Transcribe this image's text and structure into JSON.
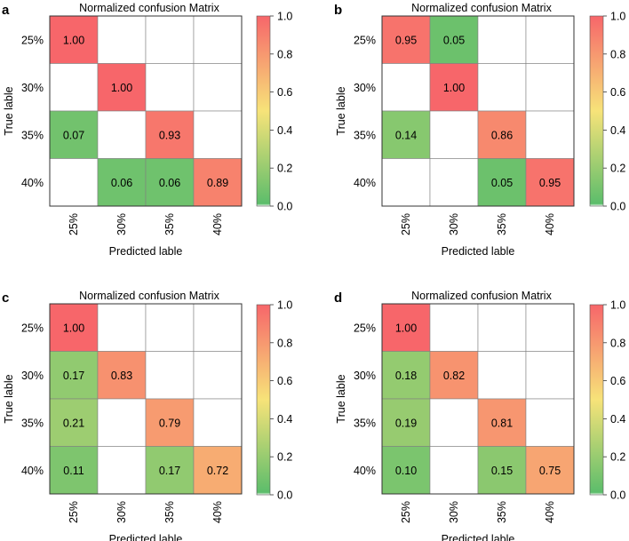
{
  "colors": {
    "scale_low": "#5cbd6b",
    "scale_mid": "#f7e379",
    "scale_high": "#f7666a",
    "grid": "#808080",
    "text": "#000000"
  },
  "chart_data": [
    {
      "type": "heatmap",
      "panel_label": "a",
      "title": "Normalized confusion Matrix",
      "xlabel": "Predicted lable",
      "ylabel": "True lable",
      "row_labels": [
        "25%",
        "30%",
        "35%",
        "40%"
      ],
      "col_labels": [
        "25%",
        "30%",
        "35%",
        "40%"
      ],
      "values": [
        [
          1.0,
          null,
          null,
          null
        ],
        [
          null,
          1.0,
          null,
          null
        ],
        [
          0.07,
          null,
          0.93,
          null
        ],
        [
          null,
          0.06,
          0.06,
          0.89
        ]
      ],
      "cell_labels": [
        [
          "1.00",
          "",
          "",
          ""
        ],
        [
          "",
          "1.00",
          "",
          ""
        ],
        [
          "0.07",
          "",
          "0.93",
          ""
        ],
        [
          "",
          "0.06",
          "0.06",
          "0.89"
        ]
      ],
      "colorbar": {
        "range": [
          0.0,
          1.0
        ],
        "ticks": [
          "0.0",
          "0.2",
          "0.4",
          "0.6",
          "0.8",
          "1.0"
        ]
      }
    },
    {
      "type": "heatmap",
      "panel_label": "b",
      "title": "Normalized confusion Matrix",
      "xlabel": "Predicted lable",
      "ylabel": "True lable",
      "row_labels": [
        "25%",
        "30%",
        "35%",
        "40%"
      ],
      "col_labels": [
        "25%",
        "30%",
        "35%",
        "40%"
      ],
      "values": [
        [
          0.95,
          0.05,
          null,
          null
        ],
        [
          null,
          1.0,
          null,
          null
        ],
        [
          0.14,
          null,
          0.86,
          null
        ],
        [
          null,
          null,
          0.05,
          0.95
        ]
      ],
      "cell_labels": [
        [
          "0.95",
          "0.05",
          "",
          ""
        ],
        [
          "",
          "1.00",
          "",
          ""
        ],
        [
          "0.14",
          "",
          "0.86",
          ""
        ],
        [
          "",
          "",
          "0.05",
          "0.95"
        ]
      ],
      "colorbar": {
        "range": [
          0.0,
          1.0
        ],
        "ticks": [
          "0.0",
          "0.2",
          "0.4",
          "0.6",
          "0.8",
          "1.0"
        ]
      }
    },
    {
      "type": "heatmap",
      "panel_label": "c",
      "title": "Normalized confusion Matrix",
      "xlabel": "Predicted lable",
      "ylabel": "True lable",
      "row_labels": [
        "25%",
        "30%",
        "35%",
        "40%"
      ],
      "col_labels": [
        "25%",
        "30%",
        "35%",
        "40%"
      ],
      "values": [
        [
          1.0,
          null,
          null,
          null
        ],
        [
          0.17,
          0.83,
          null,
          null
        ],
        [
          0.21,
          null,
          0.79,
          null
        ],
        [
          0.11,
          null,
          0.17,
          0.72
        ]
      ],
      "cell_labels": [
        [
          "1.00",
          "",
          "",
          ""
        ],
        [
          "0.17",
          "0.83",
          "",
          ""
        ],
        [
          "0.21",
          "",
          "0.79",
          ""
        ],
        [
          "0.11",
          "",
          "0.17",
          "0.72"
        ]
      ],
      "colorbar": {
        "range": [
          0.0,
          1.0
        ],
        "ticks": [
          "0.0",
          "0.2",
          "0.4",
          "0.6",
          "0.8",
          "1.0"
        ]
      }
    },
    {
      "type": "heatmap",
      "panel_label": "d",
      "title": "Normalized confusion Matrix",
      "xlabel": "Predicted lable",
      "ylabel": "True lable",
      "row_labels": [
        "25%",
        "30%",
        "35%",
        "40%"
      ],
      "col_labels": [
        "25%",
        "30%",
        "35%",
        "40%"
      ],
      "values": [
        [
          1.0,
          null,
          null,
          null
        ],
        [
          0.18,
          0.82,
          null,
          null
        ],
        [
          0.19,
          null,
          0.81,
          null
        ],
        [
          0.1,
          null,
          0.15,
          0.75
        ]
      ],
      "cell_labels": [
        [
          "1.00",
          "",
          "",
          ""
        ],
        [
          "0.18",
          "0.82",
          "",
          ""
        ],
        [
          "0.19",
          "",
          "0.81",
          ""
        ],
        [
          "0.10",
          "",
          "0.15",
          "0.75"
        ]
      ],
      "colorbar": {
        "range": [
          0.0,
          1.0
        ],
        "ticks": [
          "0.0",
          "0.2",
          "0.4",
          "0.6",
          "0.8",
          "1.0"
        ]
      }
    }
  ]
}
